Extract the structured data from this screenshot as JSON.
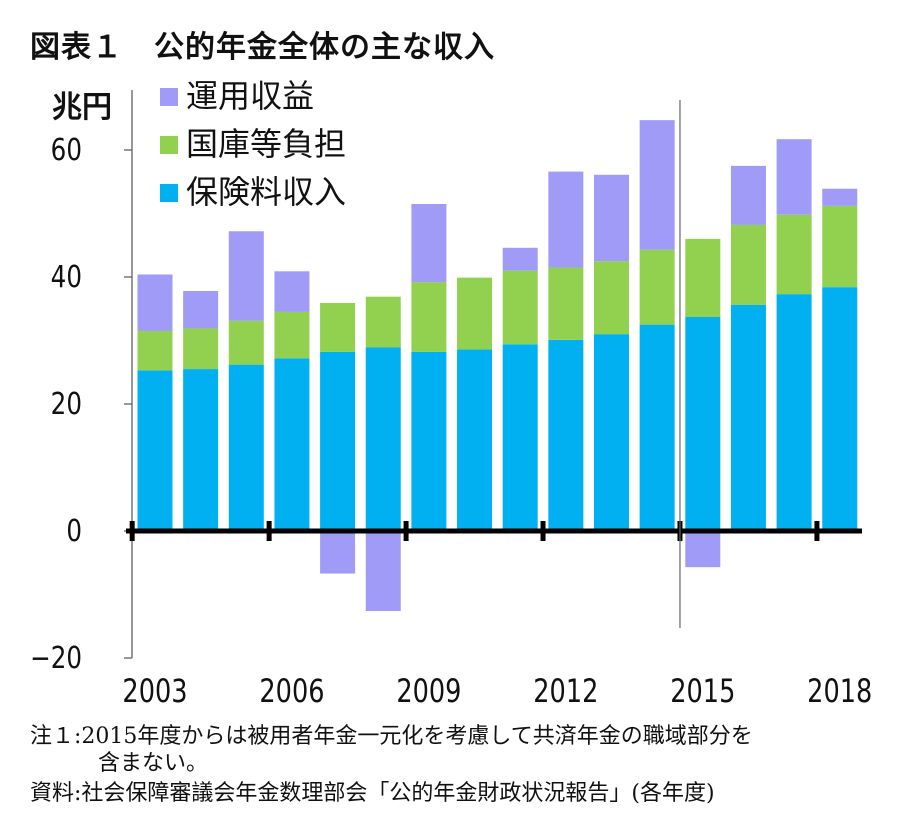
{
  "title": "図表１　公的年金全体の主な収入",
  "colors": {
    "investment": "#9f9bf7",
    "subsidy": "#92d050",
    "premium": "#00b0f0",
    "axis": "#000000"
  },
  "chart_data": {
    "type": "bar",
    "stacked": true,
    "ylabel": "兆円",
    "ylim": [
      -20,
      60
    ],
    "yticks": [
      -20,
      0,
      20,
      40,
      60
    ],
    "ytick_labels": [
      "−20",
      "0",
      "20",
      "40",
      "60"
    ],
    "categories": [
      2003,
      2004,
      2005,
      2006,
      2007,
      2008,
      2009,
      2010,
      2011,
      2012,
      2013,
      2014,
      2015,
      2016,
      2017,
      2018
    ],
    "xtick_labels": [
      "2003",
      "2006",
      "2009",
      "2012",
      "2015",
      "2018"
    ],
    "legend_position": "top-left",
    "series": [
      {
        "name": "保険料収入",
        "color_key": "premium",
        "values": [
          25.3,
          25.5,
          26.2,
          27.2,
          28.2,
          28.9,
          28.2,
          28.6,
          29.4,
          30.1,
          31.0,
          32.5,
          33.7,
          35.6,
          37.3,
          38.4
        ]
      },
      {
        "name": "国庫等負担",
        "color_key": "subsidy",
        "values": [
          6.2,
          6.4,
          6.9,
          7.3,
          7.7,
          8.0,
          11.0,
          11.3,
          11.6,
          11.4,
          11.5,
          11.8,
          12.3,
          12.6,
          12.5,
          12.8
        ]
      },
      {
        "name": "運用収益",
        "color_key": "investment",
        "values": [
          8.9,
          5.9,
          14.1,
          6.4,
          -6.7,
          -12.6,
          12.3,
          0.0,
          3.6,
          15.1,
          13.6,
          20.4,
          -5.7,
          9.3,
          11.9,
          2.7
        ]
      }
    ],
    "series_break_after": 2014
  },
  "notes": {
    "note1": "注１:2015年度からは被用者年金一元化を考慮して共済年金の職域部分を",
    "note1_cont": "含まない。",
    "source": "資料:社会保障審議会年金数理部会「公的年金財政状況報告」(各年度)"
  }
}
